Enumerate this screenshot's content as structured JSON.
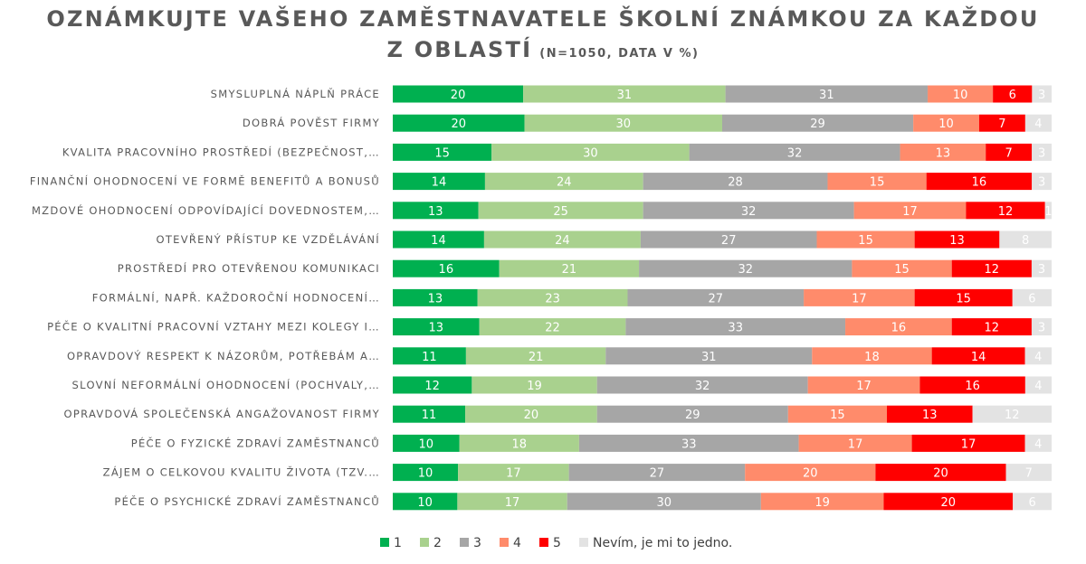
{
  "title_line1": "OZNÁMKUJTE VAŠEHO ZAMĚSTNAVATELE ŠKOLNÍ ZNÁMKOU ZA KAŽDOU",
  "title_line2": "Z OBLASTÍ",
  "subtitle": "(N=1050, DATA V %)",
  "chart_data": {
    "type": "bar",
    "orientation": "horizontal",
    "stacked": true,
    "xlim": [
      0,
      100
    ],
    "legend_position": "bottom",
    "categories": [
      "SMYSLUPLNÁ NÁPLŇ PRÁCE",
      "DOBRÁ POVĚST FIRMY",
      "KVALITA PRACOVNÍHO PROSTŘEDÍ (BEZPEČNOST,…",
      "FINANČNÍ OHODNOCENÍ VE FORMĚ BENEFITŮ A BONUSŮ",
      "MZDOVÉ OHODNOCENÍ ODPOVÍDAJÍCÍ DOVEDNOSTEM,…",
      "OTEVŘENÝ PŘÍSTUP KE VZDĚLÁVÁNÍ",
      "PROSTŘEDÍ PRO OTEVŘENOU KOMUNIKACI",
      "FORMÁLNÍ, NAPŘ. KAŽDOROČNÍ HODNOCENÍ…",
      "PÉČE O KVALITNÍ PRACOVNÍ VZTAHY MEZI KOLEGY I…",
      "OPRAVDOVÝ RESPEKT K NÁZORŮM, POTŘEBÁM A…",
      "SLOVNÍ NEFORMÁLNÍ OHODNOCENÍ (POCHVALY,…",
      "OPRAVDOVÁ SPOLEČENSKÁ ANGAŽOVANOST FIRMY",
      "PÉČE O FYZICKÉ ZDRAVÍ ZAMĚSTNANCŮ",
      "ZÁJEM O CELKOVOU KVALITU ŽIVOTA (TZV.…",
      "PÉČE O PSYCHICKÉ ZDRAVÍ ZAMĚSTNANCŮ"
    ],
    "series": [
      {
        "name": "1",
        "color": "#00b050",
        "label_color": "#ffffff",
        "values": [
          20,
          20,
          15,
          14,
          13,
          14,
          16,
          13,
          13,
          11,
          12,
          11,
          10,
          10,
          10
        ]
      },
      {
        "name": "2",
        "color": "#a9d18e",
        "label_color": "#ffffff",
        "values": [
          31,
          30,
          30,
          24,
          25,
          24,
          21,
          23,
          22,
          21,
          19,
          20,
          18,
          17,
          17
        ]
      },
      {
        "name": "3",
        "color": "#a6a6a6",
        "label_color": "#ffffff",
        "values": [
          31,
          29,
          32,
          28,
          32,
          27,
          32,
          27,
          33,
          31,
          32,
          29,
          33,
          27,
          30
        ]
      },
      {
        "name": "4",
        "color": "#ff8b6b",
        "label_color": "#ffffff",
        "values": [
          10,
          10,
          13,
          15,
          17,
          15,
          15,
          17,
          16,
          18,
          17,
          15,
          17,
          20,
          19
        ]
      },
      {
        "name": "5",
        "color": "#ff0000",
        "label_color": "#ffffff",
        "values": [
          6,
          7,
          7,
          16,
          12,
          13,
          12,
          15,
          12,
          14,
          16,
          13,
          17,
          20,
          20
        ]
      },
      {
        "name": "Nevím, je mi to jedno.",
        "color": "#e3e3e3",
        "label_color": "#ffffff",
        "values": [
          3,
          4,
          3,
          3,
          1,
          8,
          3,
          6,
          3,
          4,
          4,
          12,
          4,
          7,
          6
        ]
      }
    ]
  }
}
